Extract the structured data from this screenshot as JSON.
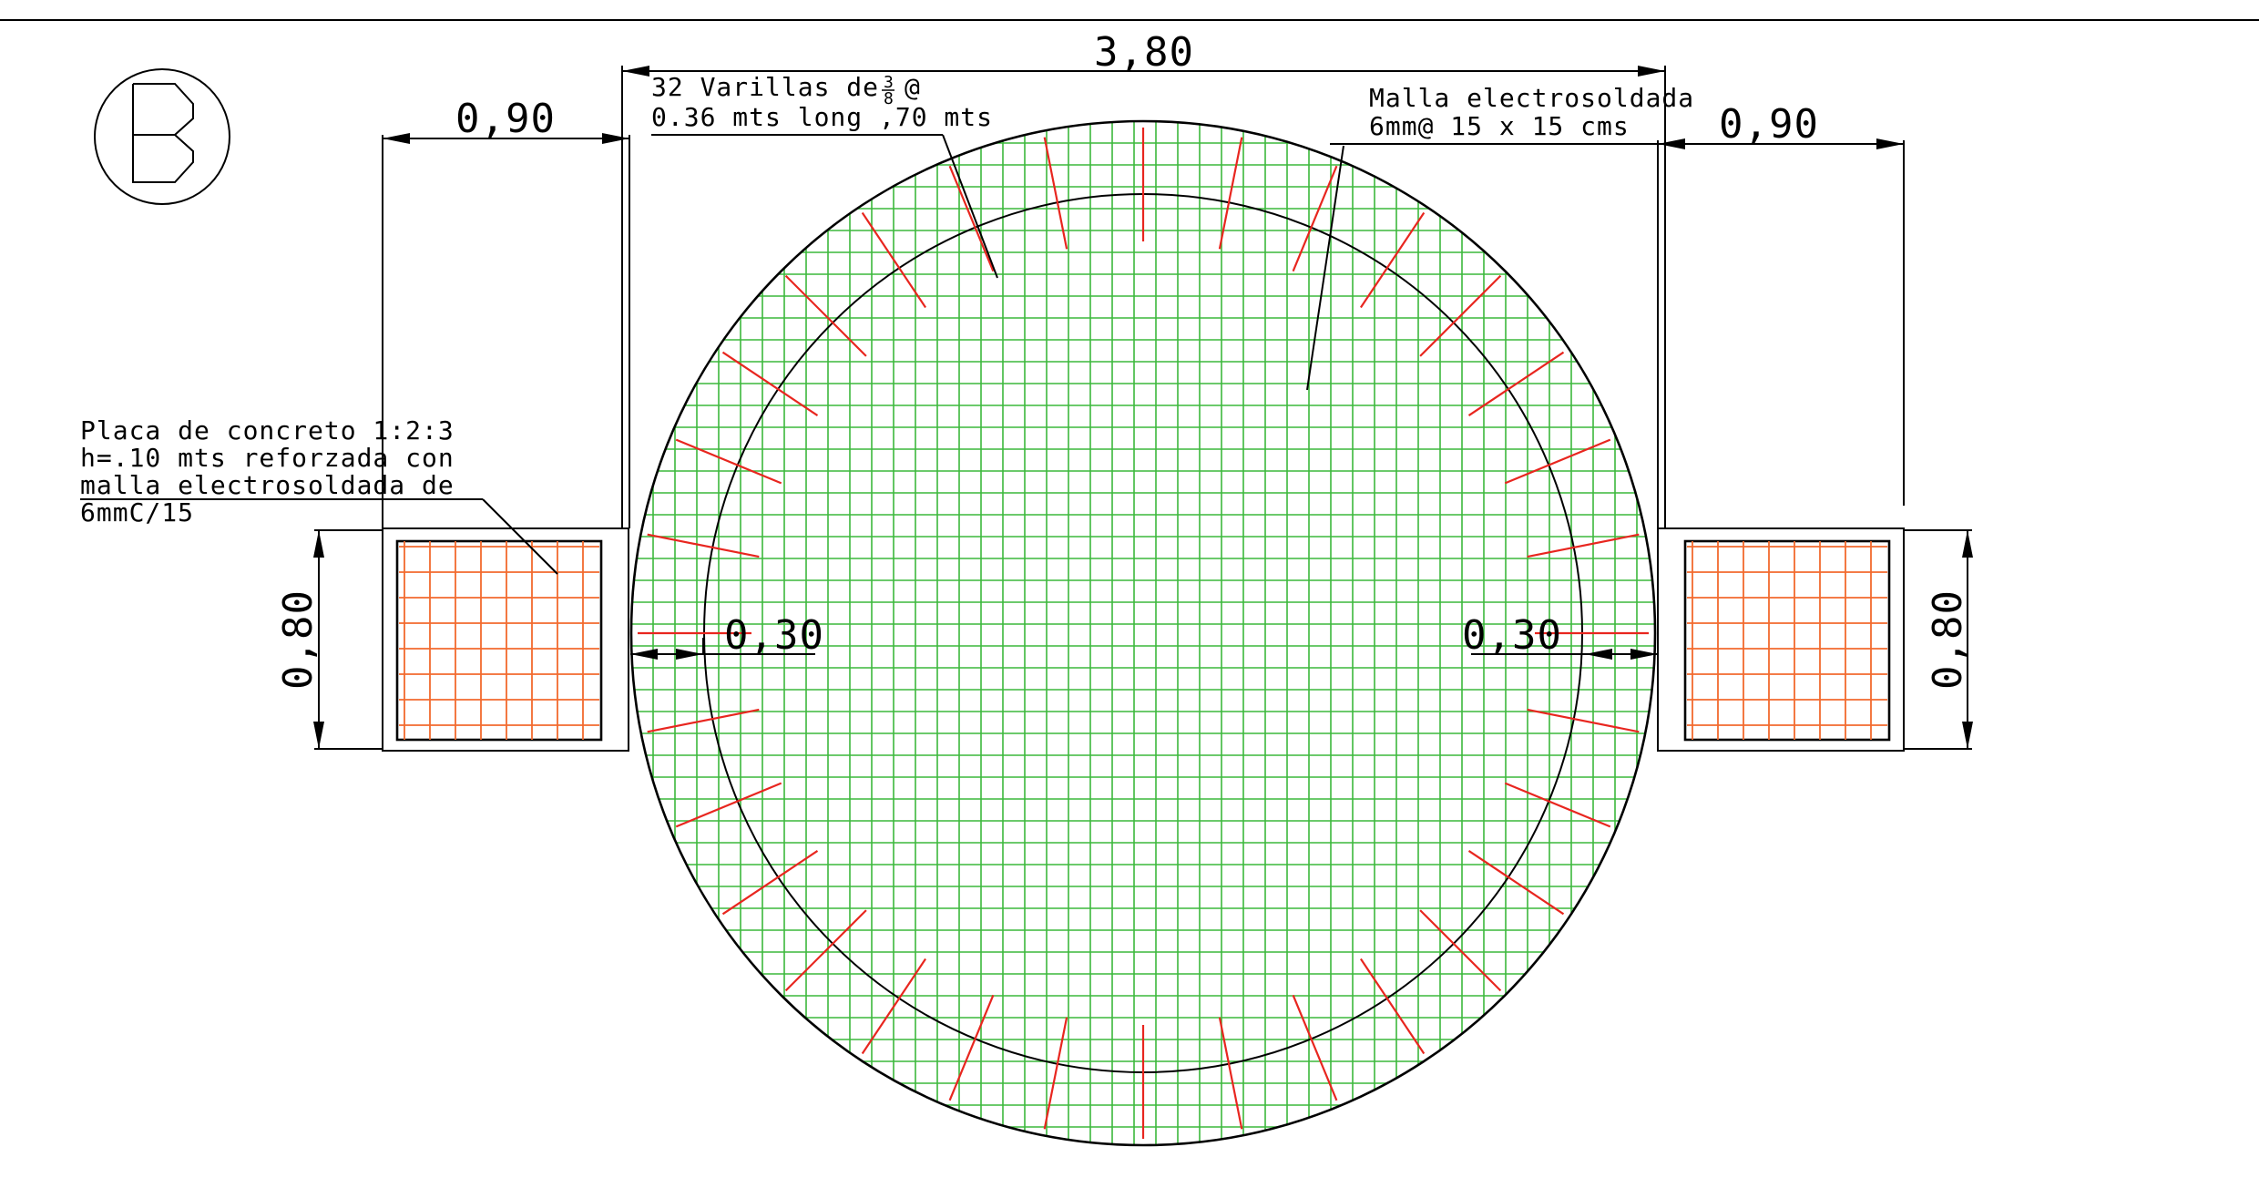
{
  "drawing": {
    "section_marker": "B",
    "dimensions": {
      "overall_width": "3,80",
      "left_wing_width": "0,90",
      "right_wing_width": "0,90",
      "left_wing_height": "0,80",
      "right_wing_height": "0,80",
      "left_offset": "0,30",
      "right_offset": "0,30"
    },
    "notes": {
      "rebar_line1_prefix": "32 Varillas de",
      "rebar_fraction_num": "3",
      "rebar_fraction_den": "8",
      "rebar_line1_suffix": "@",
      "rebar_line2": "0.36 mts long ,70 mts",
      "mesh_line1": "Malla electrosoldada",
      "mesh_line2": "6mm@ 15 x 15 cms",
      "slab_line1": "Placa de concreto 1:2:3",
      "slab_line2": "h=.10 mts reforzada con",
      "slab_line3": "malla electrosoldada de",
      "slab_line4": "6mmC/15"
    },
    "rebar_count": 32,
    "colors": {
      "linework": "#000000",
      "mesh": "#3cb83c",
      "rebar": "#e8261f",
      "wing_mesh": "#f26a2e"
    }
  }
}
